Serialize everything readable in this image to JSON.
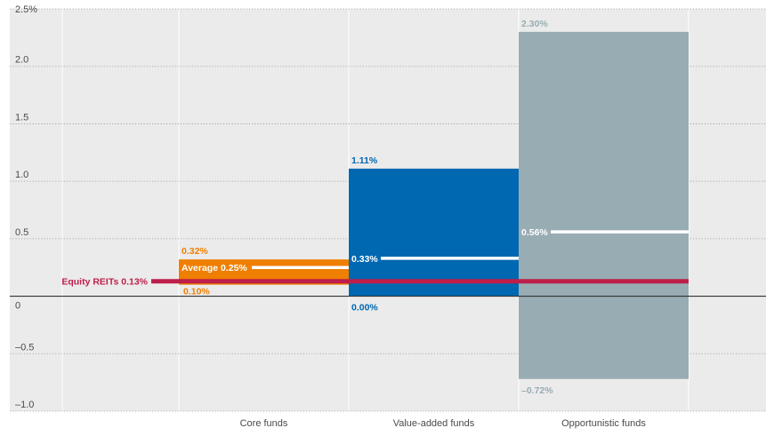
{
  "chart_data": {
    "type": "bar",
    "categories": [
      "Core funds",
      "Value-added funds",
      "Opportunistic funds"
    ],
    "ylim": [
      -1.0,
      2.5
    ],
    "y_ticks": [
      {
        "value": 2.5,
        "label": "2.5%"
      },
      {
        "value": 2.0,
        "label": "2.0"
      },
      {
        "value": 1.5,
        "label": "1.5"
      },
      {
        "value": 1.0,
        "label": "1.0"
      },
      {
        "value": 0.5,
        "label": "0.5"
      },
      {
        "value": 0,
        "label": "0"
      },
      {
        "value": -0.5,
        "label": "–0.5"
      },
      {
        "value": -1.0,
        "label": "–1.0"
      }
    ],
    "grid": true,
    "series": [
      {
        "category": "Core funds",
        "low": 0.1,
        "high": 0.32,
        "average": 0.25,
        "low_label": "0.10%",
        "high_label": "0.32%",
        "average_label": "Average 0.25%",
        "color": "#ee7f00"
      },
      {
        "category": "Value-added funds",
        "low": 0.0,
        "high": 1.11,
        "average": 0.33,
        "low_label": "0.00%",
        "high_label": "1.11%",
        "average_label": "0.33%",
        "color": "#0067b1"
      },
      {
        "category": "Opportunistic funds",
        "low": -0.72,
        "high": 2.3,
        "average": 0.56,
        "low_label": "–0.72%",
        "high_label": "2.30%",
        "average_label": "0.56%",
        "color": "#98acb3"
      }
    ],
    "reference_line": {
      "label": "Equity REITs 0.13%",
      "value": 0.13,
      "color": "#be1e4a"
    }
  }
}
